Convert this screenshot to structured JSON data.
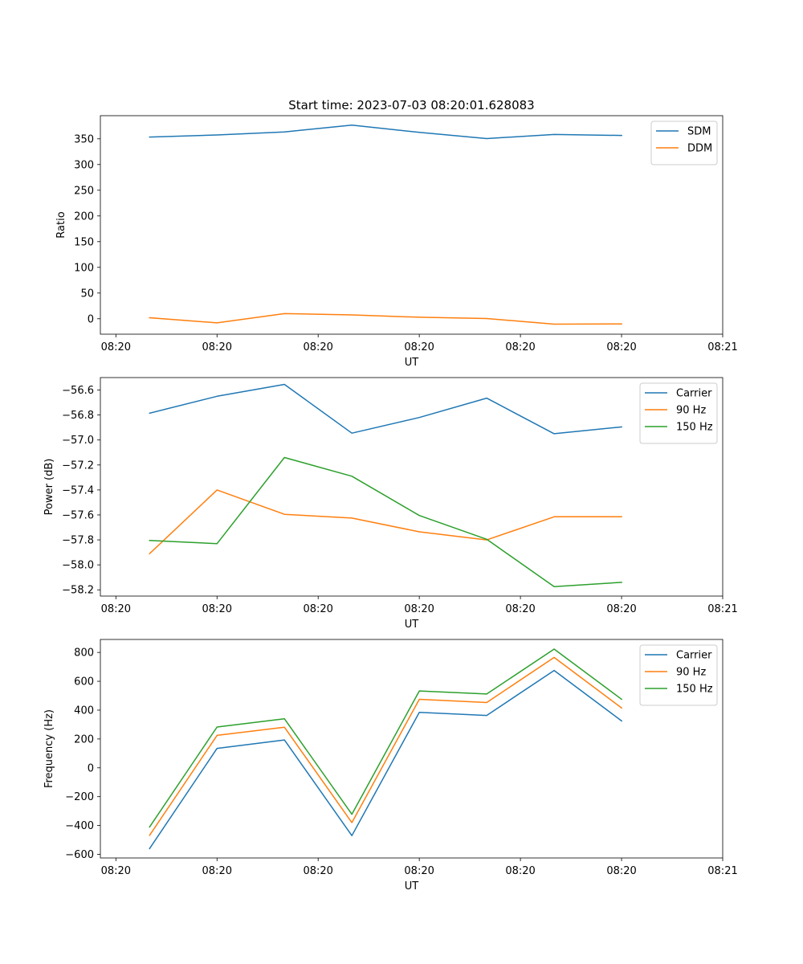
{
  "chart_data": [
    {
      "type": "line",
      "title": "Start time: 2023-07-03 08:20:01.628083",
      "xlabel": "UT",
      "ylabel": "Ratio",
      "x": [
        1,
        2,
        3,
        4,
        5,
        6,
        7,
        8
      ],
      "xlim": [
        0.27,
        9.5
      ],
      "xticks": [
        0.5,
        2,
        3.5,
        5,
        6.5,
        8,
        9.5
      ],
      "xtick_labels": [
        "08:20",
        "08:20",
        "08:20",
        "08:20",
        "08:20",
        "08:20",
        "08:21"
      ],
      "ylim": [
        -30,
        395
      ],
      "yticks": [
        0,
        50,
        100,
        150,
        200,
        250,
        300,
        350
      ],
      "ytick_labels": [
        "0",
        "50",
        "100",
        "150",
        "200",
        "250",
        "300",
        "350"
      ],
      "legend_position": "top-right",
      "series": [
        {
          "name": "SDM",
          "color": "#1f77b4",
          "values": [
            353.5,
            357.5,
            363.5,
            376.5,
            362.5,
            350.5,
            358.5,
            356.5
          ]
        },
        {
          "name": "DDM",
          "color": "#ff7f0e",
          "values": [
            2,
            -8,
            10,
            7.5,
            3,
            0.5,
            -10.5,
            -10
          ]
        }
      ]
    },
    {
      "type": "line",
      "title": "",
      "xlabel": "UT",
      "ylabel": "Power (dB)",
      "x": [
        1,
        2,
        3,
        4,
        5,
        6,
        7,
        8
      ],
      "xlim": [
        0.27,
        9.5
      ],
      "xticks": [
        0.5,
        2,
        3.5,
        5,
        6.5,
        8,
        9.5
      ],
      "xtick_labels": [
        "08:20",
        "08:20",
        "08:20",
        "08:20",
        "08:20",
        "08:20",
        "08:21"
      ],
      "ylim": [
        -58.25,
        -56.5
      ],
      "yticks": [
        -58.2,
        -58.0,
        -57.8,
        -57.6,
        -57.4,
        -57.2,
        -57.0,
        -56.8,
        -56.6
      ],
      "ytick_labels": [
        "−58.2",
        "−58.0",
        "−57.8",
        "−57.6",
        "−57.4",
        "−57.2",
        "−57.0",
        "−56.8",
        "−56.6"
      ],
      "legend_position": "top-right",
      "series": [
        {
          "name": "Carrier",
          "color": "#1f77b4",
          "values": [
            -56.785,
            -56.65,
            -56.555,
            -56.945,
            -56.82,
            -56.665,
            -56.95,
            -56.895
          ]
        },
        {
          "name": "90 Hz",
          "color": "#ff7f0e",
          "values": [
            -57.91,
            -57.4,
            -57.595,
            -57.625,
            -57.735,
            -57.8,
            -57.615,
            -57.615
          ]
        },
        {
          "name": "150 Hz",
          "color": "#2ca02c",
          "values": [
            -57.805,
            -57.83,
            -57.14,
            -57.29,
            -57.605,
            -57.795,
            -58.175,
            -58.14
          ]
        }
      ]
    },
    {
      "type": "line",
      "title": "",
      "xlabel": "UT",
      "ylabel": "Frequency (Hz)",
      "x": [
        1,
        2,
        3,
        4,
        5,
        6,
        7,
        8
      ],
      "xlim": [
        0.27,
        9.5
      ],
      "xticks": [
        0.5,
        2,
        3.5,
        5,
        6.5,
        8,
        9.5
      ],
      "xtick_labels": [
        "08:20",
        "08:20",
        "08:20",
        "08:20",
        "08:20",
        "08:20",
        "08:21"
      ],
      "ylim": [
        -625,
        890
      ],
      "yticks": [
        -600,
        -400,
        -200,
        0,
        200,
        400,
        600,
        800
      ],
      "ytick_labels": [
        "−600",
        "−400",
        "−200",
        "0",
        "200",
        "400",
        "600",
        "800"
      ],
      "legend_position": "top-right",
      "series": [
        {
          "name": "Carrier",
          "color": "#1f77b4",
          "values": [
            -560,
            135,
            193,
            -470,
            385,
            363,
            675,
            325
          ]
        },
        {
          "name": "90 Hz",
          "color": "#ff7f0e",
          "values": [
            -468,
            225,
            282,
            -380,
            475,
            453,
            765,
            415
          ]
        },
        {
          "name": "150 Hz",
          "color": "#2ca02c",
          "values": [
            -410,
            283,
            340,
            -322,
            533,
            512,
            823,
            475
          ]
        }
      ]
    }
  ]
}
